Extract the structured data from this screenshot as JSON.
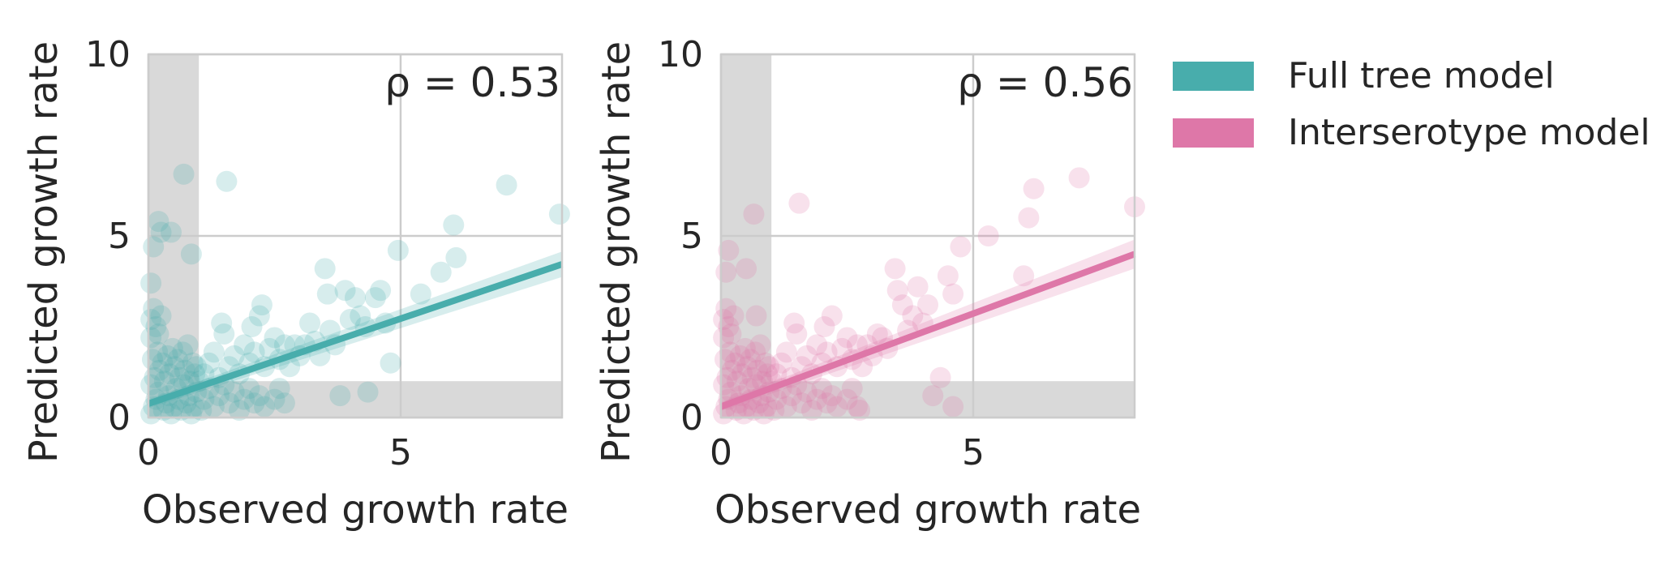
{
  "legend": {
    "items": [
      {
        "label": "Full tree model",
        "color": "#48ADAC"
      },
      {
        "label": "Interserotype model",
        "color": "#DE77A8"
      }
    ]
  },
  "chart_data": [
    {
      "type": "scatter",
      "annotation": "ρ = 0.53",
      "xlabel": "Observed growth rate",
      "ylabel": "Predicted growth rate",
      "xlim": [
        0,
        8.2
      ],
      "ylim": [
        0,
        10
      ],
      "xticks": [
        0,
        5
      ],
      "yticks": [
        0,
        5,
        10
      ],
      "grid": true,
      "shaded_regions": [
        {
          "axis": "x",
          "from": 0,
          "to": 1
        },
        {
          "axis": "y",
          "from": 0,
          "to": 1
        }
      ],
      "series": [
        {
          "color": "#48ADAC",
          "points": [
            [
              0.05,
              0.1
            ],
            [
              0.1,
              0.3
            ],
            [
              0.15,
              0.5
            ],
            [
              0.2,
              0.7
            ],
            [
              0.05,
              0.9
            ],
            [
              0.3,
              0.2
            ],
            [
              0.35,
              0.4
            ],
            [
              0.4,
              0.6
            ],
            [
              0.45,
              0.1
            ],
            [
              0.5,
              0.3
            ],
            [
              0.55,
              0.8
            ],
            [
              0.6,
              0.5
            ],
            [
              0.65,
              0.2
            ],
            [
              0.7,
              0.9
            ],
            [
              0.75,
              0.4
            ],
            [
              0.8,
              0.6
            ],
            [
              0.85,
              0.1
            ],
            [
              0.9,
              0.3
            ],
            [
              0.95,
              0.7
            ],
            [
              0.12,
              1.1
            ],
            [
              0.22,
              1.3
            ],
            [
              0.32,
              1.0
            ],
            [
              0.42,
              1.2
            ],
            [
              0.52,
              1.4
            ],
            [
              0.62,
              1.1
            ],
            [
              0.72,
              1.3
            ],
            [
              0.82,
              1.0
            ],
            [
              0.92,
              1.2
            ],
            [
              0.08,
              1.6
            ],
            [
              0.18,
              1.8
            ],
            [
              0.28,
              1.5
            ],
            [
              0.38,
              1.7
            ],
            [
              0.48,
              1.9
            ],
            [
              0.58,
              1.6
            ],
            [
              0.68,
              1.8
            ],
            [
              0.78,
              2.0
            ],
            [
              0.88,
              1.5
            ],
            [
              0.05,
              2.2
            ],
            [
              0.15,
              2.5
            ],
            [
              0.25,
              2.8
            ],
            [
              0.1,
              3.0
            ],
            [
              0.2,
              2.3
            ],
            [
              0.05,
              2.7
            ],
            [
              0.05,
              3.7
            ],
            [
              0.1,
              4.7
            ],
            [
              0.25,
              5.1
            ],
            [
              0.2,
              5.4
            ],
            [
              0.45,
              5.1
            ],
            [
              0.7,
              6.7
            ],
            [
              0.85,
              4.5
            ],
            [
              1.55,
              6.5
            ],
            [
              1.05,
              0.2
            ],
            [
              1.1,
              0.5
            ],
            [
              1.2,
              0.8
            ],
            [
              1.3,
              0.3
            ],
            [
              1.4,
              0.6
            ],
            [
              1.5,
              0.9
            ],
            [
              1.6,
              0.4
            ],
            [
              1.7,
              0.7
            ],
            [
              1.8,
              0.2
            ],
            [
              1.9,
              0.5
            ],
            [
              2.0,
              0.8
            ],
            [
              2.1,
              0.4
            ],
            [
              2.2,
              0.6
            ],
            [
              2.3,
              0.3
            ],
            [
              2.5,
              0.5
            ],
            [
              2.6,
              0.8
            ],
            [
              2.7,
              0.4
            ],
            [
              1.1,
              1.2
            ],
            [
              1.2,
              1.5
            ],
            [
              1.3,
              1.8
            ],
            [
              1.4,
              1.1
            ],
            [
              1.5,
              2.3
            ],
            [
              1.6,
              1.4
            ],
            [
              1.7,
              1.7
            ],
            [
              1.8,
              1.2
            ],
            [
              1.9,
              2.0
            ],
            [
              2.0,
              1.5
            ],
            [
              2.1,
              1.8
            ],
            [
              2.2,
              2.8
            ],
            [
              2.25,
              3.1
            ],
            [
              2.3,
              1.4
            ],
            [
              2.4,
              1.9
            ],
            [
              2.5,
              2.2
            ],
            [
              2.6,
              1.6
            ],
            [
              2.7,
              2.0
            ],
            [
              2.8,
              1.4
            ],
            [
              2.9,
              2.0
            ],
            [
              3.0,
              1.7
            ],
            [
              3.2,
              2.6
            ],
            [
              3.3,
              2.1
            ],
            [
              3.4,
              1.7
            ],
            [
              3.5,
              4.1
            ],
            [
              3.55,
              3.4
            ],
            [
              3.6,
              2.4
            ],
            [
              3.7,
              2.0
            ],
            [
              3.8,
              0.6
            ],
            [
              3.9,
              3.5
            ],
            [
              4.0,
              2.7
            ],
            [
              4.1,
              3.3
            ],
            [
              4.2,
              2.8
            ],
            [
              4.3,
              2.5
            ],
            [
              4.5,
              3.3
            ],
            [
              4.6,
              3.5
            ],
            [
              4.7,
              2.6
            ],
            [
              4.8,
              1.5
            ],
            [
              4.95,
              4.6
            ],
            [
              5.4,
              3.4
            ],
            [
              5.8,
              4.0
            ],
            [
              6.05,
              5.3
            ],
            [
              6.1,
              4.4
            ],
            [
              7.1,
              6.4
            ],
            [
              8.15,
              5.6
            ],
            [
              1.0,
              1.0
            ],
            [
              0.95,
              1.4
            ],
            [
              4.35,
              0.7
            ],
            [
              2.05,
              2.5
            ],
            [
              1.45,
              2.6
            ],
            [
              3.1,
              2.0
            ]
          ],
          "regression": {
            "x": [
              0,
              8.2
            ],
            "y": [
              0.38,
              4.22
            ],
            "band_half_width": [
              0.12,
              0.35
            ]
          }
        }
      ]
    },
    {
      "type": "scatter",
      "annotation": "ρ = 0.56",
      "xlabel": "Observed growth rate",
      "ylabel": "Predicted growth rate",
      "xlim": [
        0,
        8.2
      ],
      "ylim": [
        0,
        10
      ],
      "xticks": [
        0,
        5
      ],
      "yticks": [
        0,
        5,
        10
      ],
      "grid": true,
      "shaded_regions": [
        {
          "axis": "x",
          "from": 0,
          "to": 1
        },
        {
          "axis": "y",
          "from": 0,
          "to": 1
        }
      ],
      "series": [
        {
          "color": "#DE77A8",
          "points": [
            [
              0.05,
              0.1
            ],
            [
              0.1,
              0.3
            ],
            [
              0.15,
              0.5
            ],
            [
              0.2,
              0.7
            ],
            [
              0.05,
              0.9
            ],
            [
              0.3,
              0.2
            ],
            [
              0.35,
              0.4
            ],
            [
              0.4,
              0.6
            ],
            [
              0.45,
              0.1
            ],
            [
              0.5,
              0.3
            ],
            [
              0.55,
              0.8
            ],
            [
              0.6,
              0.5
            ],
            [
              0.65,
              0.2
            ],
            [
              0.7,
              0.9
            ],
            [
              0.75,
              0.4
            ],
            [
              0.8,
              0.6
            ],
            [
              0.85,
              0.1
            ],
            [
              0.9,
              0.3
            ],
            [
              0.95,
              0.7
            ],
            [
              0.12,
              1.1
            ],
            [
              0.22,
              1.3
            ],
            [
              0.32,
              1.0
            ],
            [
              0.42,
              1.2
            ],
            [
              0.52,
              1.4
            ],
            [
              0.62,
              1.1
            ],
            [
              0.72,
              1.3
            ],
            [
              0.82,
              1.0
            ],
            [
              0.92,
              1.2
            ],
            [
              0.08,
              1.6
            ],
            [
              0.18,
              1.8
            ],
            [
              0.28,
              1.5
            ],
            [
              0.38,
              1.7
            ],
            [
              0.48,
              1.9
            ],
            [
              0.58,
              1.6
            ],
            [
              0.68,
              1.8
            ],
            [
              0.78,
              2.0
            ],
            [
              0.88,
              1.5
            ],
            [
              0.05,
              2.2
            ],
            [
              0.15,
              2.5
            ],
            [
              0.25,
              2.8
            ],
            [
              0.1,
              3.0
            ],
            [
              0.2,
              2.3
            ],
            [
              0.05,
              2.7
            ],
            [
              0.1,
              4.0
            ],
            [
              0.15,
              4.6
            ],
            [
              0.5,
              4.1
            ],
            [
              0.65,
              5.6
            ],
            [
              0.7,
              2.8
            ],
            [
              1.55,
              5.9
            ],
            [
              1.05,
              0.2
            ],
            [
              1.1,
              0.5
            ],
            [
              1.2,
              0.8
            ],
            [
              1.3,
              0.3
            ],
            [
              1.4,
              0.6
            ],
            [
              1.5,
              0.9
            ],
            [
              1.6,
              0.4
            ],
            [
              1.7,
              0.7
            ],
            [
              1.8,
              0.2
            ],
            [
              1.9,
              0.5
            ],
            [
              2.0,
              0.8
            ],
            [
              2.1,
              0.4
            ],
            [
              2.2,
              0.6
            ],
            [
              2.3,
              0.3
            ],
            [
              2.5,
              0.5
            ],
            [
              2.6,
              0.8
            ],
            [
              2.7,
              0.3
            ],
            [
              1.1,
              1.2
            ],
            [
              1.2,
              1.5
            ],
            [
              1.3,
              1.8
            ],
            [
              1.4,
              1.1
            ],
            [
              1.5,
              2.3
            ],
            [
              1.6,
              1.4
            ],
            [
              1.7,
              1.7
            ],
            [
              1.8,
              1.2
            ],
            [
              1.9,
              2.0
            ],
            [
              2.0,
              1.5
            ],
            [
              2.1,
              1.8
            ],
            [
              2.2,
              2.8
            ],
            [
              2.3,
              1.4
            ],
            [
              2.4,
              1.9
            ],
            [
              2.5,
              2.2
            ],
            [
              2.6,
              1.6
            ],
            [
              2.7,
              2.0
            ],
            [
              2.8,
              1.4
            ],
            [
              2.9,
              2.0
            ],
            [
              3.0,
              1.7
            ],
            [
              3.2,
              2.2
            ],
            [
              3.3,
              1.9
            ],
            [
              3.45,
              4.1
            ],
            [
              3.5,
              3.5
            ],
            [
              3.6,
              3.1
            ],
            [
              3.7,
              2.4
            ],
            [
              3.9,
              3.6
            ],
            [
              4.0,
              2.6
            ],
            [
              4.1,
              3.1
            ],
            [
              4.2,
              0.6
            ],
            [
              4.35,
              1.1
            ],
            [
              4.5,
              3.9
            ],
            [
              4.6,
              3.4
            ],
            [
              4.6,
              0.3
            ],
            [
              4.75,
              4.7
            ],
            [
              5.3,
              5.0
            ],
            [
              6.0,
              3.9
            ],
            [
              6.1,
              5.5
            ],
            [
              6.2,
              6.3
            ],
            [
              7.1,
              6.6
            ],
            [
              8.2,
              5.8
            ],
            [
              1.0,
              1.0
            ],
            [
              0.95,
              1.4
            ],
            [
              2.05,
              2.5
            ],
            [
              1.45,
              2.6
            ],
            [
              3.1,
              2.3
            ],
            [
              2.75,
              0.2
            ],
            [
              3.8,
              2.8
            ]
          ],
          "regression": {
            "x": [
              0,
              8.2
            ],
            "y": [
              0.3,
              4.5
            ],
            "band_half_width": [
              0.12,
              0.4
            ]
          }
        }
      ]
    }
  ]
}
